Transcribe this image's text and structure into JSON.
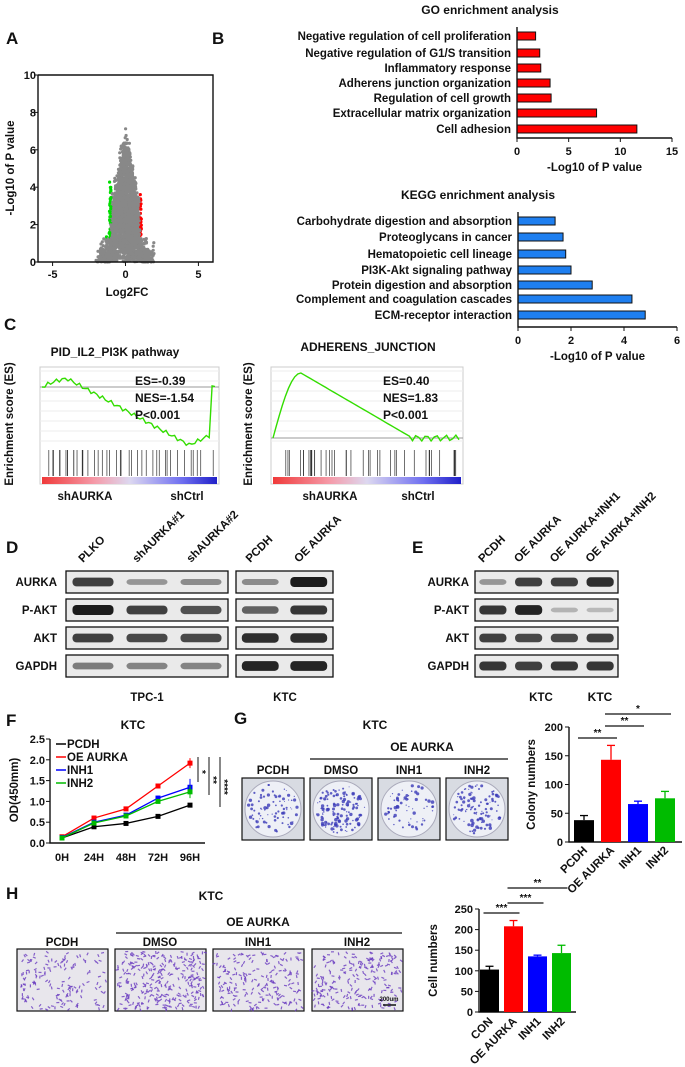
{
  "panel_letters": {
    "a": "A",
    "b": "B",
    "c": "C",
    "d": "D",
    "e": "E",
    "f": "F",
    "g": "G",
    "h": "H"
  },
  "colors": {
    "up": "#ff0000",
    "down": "#00dd00",
    "ns": "#888888",
    "go_bar": "#ff0000",
    "kegg_bar": "#1e7ff0",
    "gsea_line": "#33dd00",
    "pcdh": "#000000",
    "oe": "#ff0000",
    "inh1": "#0000ff",
    "inh2": "#00bb00"
  },
  "chart_data": [
    {
      "id": "volcano",
      "type": "scatter",
      "xlabel": "Log2FC",
      "ylabel": "-Log10 of P value",
      "xlim": [
        -6,
        6
      ],
      "ylim": [
        0,
        10
      ],
      "xticks": [
        -5,
        0,
        5
      ],
      "yticks": [
        0,
        2,
        4,
        6,
        8,
        10
      ],
      "point_colors": {
        "upregulated": "#ff0000",
        "downregulated": "#00dd00",
        "not_significant": "#888888"
      }
    },
    {
      "id": "go",
      "type": "bar",
      "orientation": "horizontal",
      "title": "GO enrichment analysis",
      "xlabel": "-Log10 of P value",
      "xlim": [
        0,
        15
      ],
      "xticks": [
        0,
        5,
        10,
        15
      ],
      "categories": [
        "Negative regulation of cell proliferation",
        "Negative regulation of G1/S transition",
        "Inflammatory response",
        "Adherens junction organization",
        "Regulation of cell growth",
        "Extracellular matrix organization",
        "Cell adhesion"
      ],
      "values": [
        1.8,
        2.2,
        2.3,
        3.2,
        3.3,
        7.7,
        11.6
      ]
    },
    {
      "id": "kegg",
      "type": "bar",
      "orientation": "horizontal",
      "title": "KEGG enrichment analysis",
      "xlabel": "-Log10 of P value",
      "xlim": [
        0,
        6
      ],
      "xticks": [
        0,
        2,
        4,
        6
      ],
      "categories": [
        "Carbohydrate digestion and absorption",
        "Proteoglycans in cancer",
        "Hematopoietic cell lineage",
        "PI3K-Akt signaling pathway",
        "Protein digestion and absorption",
        "Complement and coagulation cascades",
        "ECM-receptor interaction"
      ],
      "values": [
        1.4,
        1.7,
        1.8,
        2.0,
        2.8,
        4.3,
        4.8
      ]
    },
    {
      "id": "gsea1",
      "type": "line",
      "title": "PID_IL2_PI3K pathway",
      "ylabel": "Enrichment score (ES)",
      "stats": [
        "ES=-0.39",
        "NES=-1.54",
        "P<0.001"
      ],
      "left_label": "shAURKA",
      "right_label": "shCtrl"
    },
    {
      "id": "gsea2",
      "type": "line",
      "title": "ADHERENS_JUNCTION",
      "ylabel": "Enrichment score (ES)",
      "stats": [
        "ES=0.40",
        "NES=1.83",
        "P<0.001"
      ],
      "left_label": "shAURKA",
      "right_label": "shCtrl"
    },
    {
      "id": "growth",
      "type": "line",
      "title": "KTC",
      "ylabel": "OD(450mm)",
      "ylim": [
        0,
        2.5
      ],
      "yticks": [
        "0.0",
        "0.5",
        "1.0",
        "1.5",
        "2.0",
        "2.5"
      ],
      "categories": [
        "0H",
        "24H",
        "48H",
        "72H",
        "96H"
      ],
      "series": [
        {
          "name": "PCDH",
          "values": [
            0.12,
            0.39,
            0.47,
            0.64,
            0.91
          ],
          "err": [
            0.02,
            0.03,
            0.03,
            0.03,
            0.04
          ]
        },
        {
          "name": "OE AURKA",
          "values": [
            0.15,
            0.6,
            0.82,
            1.37,
            1.92
          ],
          "err": [
            0.02,
            0.04,
            0.04,
            0.05,
            0.12
          ]
        },
        {
          "name": "INH1",
          "values": [
            0.13,
            0.5,
            0.67,
            1.08,
            1.34
          ],
          "err": [
            0.02,
            0.03,
            0.03,
            0.06,
            0.2
          ]
        },
        {
          "name": "INH2",
          "values": [
            0.12,
            0.48,
            0.65,
            1.0,
            1.23
          ],
          "err": [
            0.02,
            0.03,
            0.03,
            0.04,
            0.15
          ]
        }
      ],
      "significance": [
        "*",
        "**",
        "****"
      ]
    },
    {
      "id": "colony",
      "type": "bar",
      "title": "KTC",
      "ylabel": "Colony numbers",
      "ylim": [
        0,
        200
      ],
      "yticks": [
        0,
        50,
        100,
        150,
        200
      ],
      "categories": [
        "PCDH",
        "OE AURKA",
        "INH1",
        "INH2"
      ],
      "values": [
        38,
        143,
        66,
        76
      ],
      "err": [
        8,
        25,
        5,
        12
      ],
      "significance": [
        {
          "from": 0,
          "to": 1,
          "label": "**"
        },
        {
          "from": 1,
          "to": 2,
          "label": "**"
        },
        {
          "from": 1,
          "to": 3,
          "label": "*"
        }
      ]
    },
    {
      "id": "invasion",
      "type": "bar",
      "ylabel": "Cell numbers",
      "ylim": [
        0,
        250
      ],
      "yticks": [
        0,
        50,
        100,
        150,
        200,
        250
      ],
      "categories": [
        "CON",
        "OE AURKA",
        "INH1",
        "INH2"
      ],
      "values": [
        103,
        208,
        135,
        143
      ],
      "err": [
        8,
        14,
        3,
        19
      ],
      "significance": [
        {
          "from": 0,
          "to": 1,
          "label": "***"
        },
        {
          "from": 1,
          "to": 2,
          "label": "***"
        },
        {
          "from": 1,
          "to": 3,
          "label": "**"
        }
      ]
    }
  ],
  "blot_d": {
    "lanes_left": [
      "PLKO",
      "shAURKA#1",
      "shAURKA#2"
    ],
    "lanes_right": [
      "PCDH",
      "OE AURKA"
    ],
    "rows": [
      "AURKA",
      "P-AKT",
      "AKT",
      "GAPDH"
    ],
    "cell_left": "TPC-1",
    "cell_right": "KTC",
    "intensity_left": [
      [
        0.8,
        0.3,
        0.35
      ],
      [
        1,
        0.8,
        0.7
      ],
      [
        0.8,
        0.75,
        0.75
      ],
      [
        0.45,
        0.4,
        0.4
      ]
    ],
    "intensity_right": [
      [
        0.35,
        1
      ],
      [
        0.6,
        0.85
      ],
      [
        0.9,
        0.9
      ],
      [
        0.95,
        0.95
      ]
    ]
  },
  "blot_e": {
    "lanes": [
      "PCDH",
      "OE AURKA",
      "OE AURKA+INH1",
      "OE AURKA+INH2"
    ],
    "rows": [
      "AURKA",
      "P-AKT",
      "AKT",
      "GAPDH"
    ],
    "cell": "KTC",
    "intensity": [
      [
        0.3,
        0.8,
        0.8,
        0.9
      ],
      [
        0.85,
        0.95,
        0.12,
        0.1
      ],
      [
        0.8,
        0.75,
        0.75,
        0.8
      ],
      [
        0.85,
        0.8,
        0.85,
        0.85
      ]
    ]
  },
  "panel_g": {
    "title": "KTC",
    "group": "OE AURKA",
    "plates": [
      "PCDH",
      "DMSO",
      "INH1",
      "INH2"
    ],
    "plate_density": [
      0.55,
      0.9,
      0.45,
      0.75
    ]
  },
  "panel_h": {
    "title": "KTC",
    "group": "OE AURKA",
    "images": [
      "PCDH",
      "DMSO",
      "INH1",
      "INH2"
    ],
    "scale_bar": "200um",
    "image_density": [
      0.45,
      0.9,
      0.6,
      0.65
    ]
  }
}
